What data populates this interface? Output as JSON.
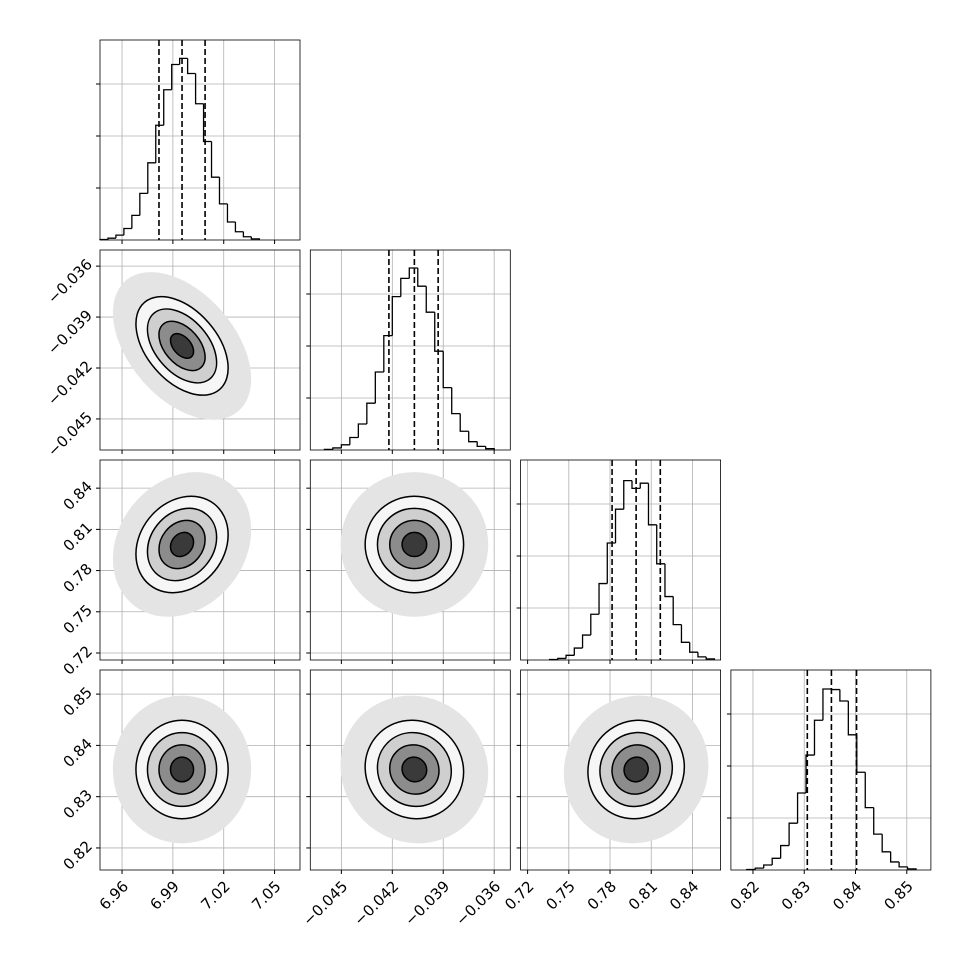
{
  "chart_data": {
    "type": "corner",
    "grid": true,
    "hist_color": "#000000",
    "count_lim": [
      0,
      3846
    ],
    "count_ticks": [
      1000,
      2000,
      3000
    ],
    "params": [
      {
        "lim": [
          6.947,
          7.065
        ],
        "ticks": [
          6.96,
          6.99,
          7.02,
          7.05
        ],
        "bins": [
          6.947,
          6.9517,
          6.9564,
          6.9611,
          6.9658,
          6.9705,
          6.9752,
          6.9799,
          6.9846,
          6.9893,
          6.994,
          6.9987,
          7.0034,
          7.0081,
          7.0128,
          7.0175,
          7.0222,
          7.0269,
          7.0316,
          7.0363,
          7.041
        ],
        "counts": [
          10,
          35,
          94,
          221,
          473,
          896,
          1484,
          2207,
          2890,
          3375,
          3493,
          3202,
          2620,
          1894,
          1208,
          694,
          346,
          158,
          62,
          22
        ],
        "quantiles": [
          6.9818,
          6.9954,
          7.009
        ]
      },
      {
        "lim": [
          -0.04683,
          -0.03505
        ],
        "ticks": [
          {
            "value": -0.045,
            "label": "−0.045"
          },
          {
            "value": -0.042,
            "label": "−0.042"
          },
          {
            "value": -0.039,
            "label": "−0.039"
          },
          {
            "value": -0.036,
            "label": "−0.036"
          }
        ],
        "bins": [
          -0.046,
          -0.0455,
          -0.045,
          -0.0445,
          -0.044,
          -0.0435,
          -0.043,
          -0.0425,
          -0.042,
          -0.0415,
          -0.041,
          -0.0405,
          -0.04,
          -0.0395,
          -0.039,
          -0.0385,
          -0.038,
          -0.0375,
          -0.037,
          -0.0365,
          -0.036
        ],
        "counts": [
          12,
          40,
          100,
          240,
          500,
          900,
          1500,
          2200,
          2950,
          3300,
          3500,
          3150,
          2650,
          1900,
          1200,
          700,
          360,
          160,
          70,
          25
        ],
        "quantiles": [
          -0.0422,
          -0.0407,
          -0.0393
        ]
      },
      {
        "lim": [
          0.7149,
          0.8605
        ],
        "ticks": [
          0.72,
          0.75,
          0.78,
          0.81,
          0.84
        ],
        "bins": [
          0.736,
          0.742,
          0.748,
          0.754,
          0.76,
          0.766,
          0.772,
          0.778,
          0.784,
          0.79,
          0.796,
          0.802,
          0.808,
          0.814,
          0.82,
          0.826,
          0.832,
          0.838,
          0.844,
          0.85,
          0.856
        ],
        "counts": [
          8,
          30,
          90,
          230,
          480,
          880,
          1470,
          2250,
          2900,
          3450,
          3300,
          3400,
          2600,
          1850,
          1220,
          680,
          340,
          150,
          60,
          20
        ],
        "quantiles": [
          0.7815,
          0.799,
          0.8166
        ]
      },
      {
        "lim": [
          0.8157,
          0.8547
        ],
        "ticks": [
          0.82,
          0.83,
          0.84,
          0.85
        ],
        "bins": [
          0.8188,
          0.82045,
          0.8221,
          0.82375,
          0.8254,
          0.82705,
          0.8287,
          0.83035,
          0.832,
          0.83365,
          0.8353,
          0.83695,
          0.8386,
          0.84025,
          0.8419,
          0.84355,
          0.8452,
          0.84685,
          0.8485,
          0.85015,
          0.8518
        ],
        "counts": [
          10,
          36,
          96,
          225,
          470,
          900,
          1480,
          2210,
          2880,
          3480,
          3470,
          3250,
          2600,
          1880,
          1200,
          690,
          350,
          155,
          60,
          20
        ],
        "quantiles": [
          0.8306,
          0.8353,
          0.8402
        ]
      }
    ],
    "pairs": [
      {
        "x": 0,
        "y": 1,
        "rho": -0.45
      },
      {
        "x": 0,
        "y": 2,
        "rho": 0.2
      },
      {
        "x": 1,
        "y": 2,
        "rho": 0
      },
      {
        "x": 0,
        "y": 3,
        "rho": 0
      },
      {
        "x": 1,
        "y": 3,
        "rho": -0.05
      },
      {
        "x": 2,
        "y": 3,
        "rho": 0.05
      }
    ]
  }
}
